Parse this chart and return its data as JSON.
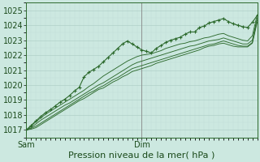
{
  "bg_color": "#cce8e0",
  "grid_major_color": "#b0d0c8",
  "grid_minor_color": "#c0dcd8",
  "line_color": "#2d6a2d",
  "xlabel": "Pression niveau de la mer( hPa )",
  "xlabel_fontsize": 8,
  "tick_label_fontsize": 7,
  "xlim": [
    0,
    48
  ],
  "ylim": [
    1016.5,
    1025.5
  ],
  "yticks": [
    1017,
    1018,
    1019,
    1020,
    1021,
    1022,
    1023,
    1024,
    1025
  ],
  "vline_x": 24,
  "sam_x": 0,
  "dim_x": 24,
  "series1_x": [
    0,
    1,
    2,
    3,
    4,
    5,
    6,
    7,
    8,
    9,
    10,
    11,
    12,
    13,
    14,
    15,
    16,
    17,
    18,
    19,
    20,
    21,
    22,
    23,
    24,
    25,
    26,
    27,
    28,
    29,
    30,
    31,
    32,
    33,
    34,
    35,
    36,
    37,
    38,
    39,
    40,
    41,
    42,
    43,
    44,
    45,
    46,
    47,
    48
  ],
  "series1": [
    1017.0,
    1017.3,
    1017.6,
    1017.9,
    1018.15,
    1018.35,
    1018.6,
    1018.85,
    1019.05,
    1019.3,
    1019.6,
    1019.85,
    1020.55,
    1020.85,
    1021.05,
    1021.25,
    1021.55,
    1021.85,
    1022.15,
    1022.45,
    1022.75,
    1022.95,
    1022.75,
    1022.55,
    1022.35,
    1022.25,
    1022.15,
    1022.45,
    1022.65,
    1022.85,
    1023.0,
    1023.1,
    1023.2,
    1023.4,
    1023.55,
    1023.55,
    1023.85,
    1023.95,
    1024.15,
    1024.25,
    1024.35,
    1024.45,
    1024.25,
    1024.1,
    1024.0,
    1023.9,
    1023.85,
    1024.2,
    1024.65
  ],
  "series2": [
    1017.0,
    1017.25,
    1017.55,
    1017.8,
    1018.05,
    1018.25,
    1018.45,
    1018.65,
    1018.85,
    1019.05,
    1019.25,
    1019.45,
    1019.65,
    1019.9,
    1020.1,
    1020.35,
    1020.6,
    1020.8,
    1021.0,
    1021.2,
    1021.4,
    1021.6,
    1021.75,
    1021.9,
    1022.0,
    1022.05,
    1022.1,
    1022.2,
    1022.3,
    1022.45,
    1022.55,
    1022.65,
    1022.75,
    1022.8,
    1022.9,
    1022.95,
    1023.05,
    1023.15,
    1023.2,
    1023.3,
    1023.4,
    1023.45,
    1023.3,
    1023.2,
    1023.1,
    1023.0,
    1022.95,
    1023.3,
    1024.7
  ],
  "series3": [
    1017.0,
    1017.15,
    1017.4,
    1017.65,
    1017.85,
    1018.05,
    1018.25,
    1018.45,
    1018.65,
    1018.8,
    1019.0,
    1019.2,
    1019.4,
    1019.6,
    1019.8,
    1020.0,
    1020.15,
    1020.35,
    1020.55,
    1020.75,
    1020.95,
    1021.15,
    1021.35,
    1021.5,
    1021.6,
    1021.7,
    1021.8,
    1021.9,
    1022.0,
    1022.1,
    1022.2,
    1022.3,
    1022.4,
    1022.5,
    1022.6,
    1022.65,
    1022.75,
    1022.85,
    1022.95,
    1023.0,
    1023.05,
    1023.15,
    1023.05,
    1022.95,
    1022.85,
    1022.75,
    1022.75,
    1023.0,
    1024.5
  ],
  "series4": [
    1017.0,
    1017.1,
    1017.25,
    1017.45,
    1017.65,
    1017.85,
    1018.05,
    1018.25,
    1018.45,
    1018.65,
    1018.85,
    1019.05,
    1019.25,
    1019.45,
    1019.6,
    1019.8,
    1019.95,
    1020.15,
    1020.35,
    1020.5,
    1020.7,
    1020.9,
    1021.1,
    1021.2,
    1021.3,
    1021.4,
    1021.5,
    1021.6,
    1021.7,
    1021.8,
    1021.9,
    1022.0,
    1022.1,
    1022.2,
    1022.3,
    1022.4,
    1022.5,
    1022.6,
    1022.7,
    1022.75,
    1022.85,
    1022.95,
    1022.85,
    1022.75,
    1022.65,
    1022.6,
    1022.6,
    1022.85,
    1024.35
  ],
  "series5": [
    1017.0,
    1017.05,
    1017.15,
    1017.35,
    1017.55,
    1017.75,
    1017.95,
    1018.15,
    1018.35,
    1018.55,
    1018.75,
    1018.95,
    1019.1,
    1019.3,
    1019.5,
    1019.7,
    1019.8,
    1020.0,
    1020.2,
    1020.35,
    1020.55,
    1020.7,
    1020.9,
    1021.0,
    1021.1,
    1021.2,
    1021.3,
    1021.45,
    1021.55,
    1021.65,
    1021.75,
    1021.85,
    1021.95,
    1022.05,
    1022.15,
    1022.25,
    1022.35,
    1022.5,
    1022.6,
    1022.65,
    1022.75,
    1022.8,
    1022.7,
    1022.6,
    1022.55,
    1022.55,
    1022.55,
    1022.8,
    1024.2
  ]
}
